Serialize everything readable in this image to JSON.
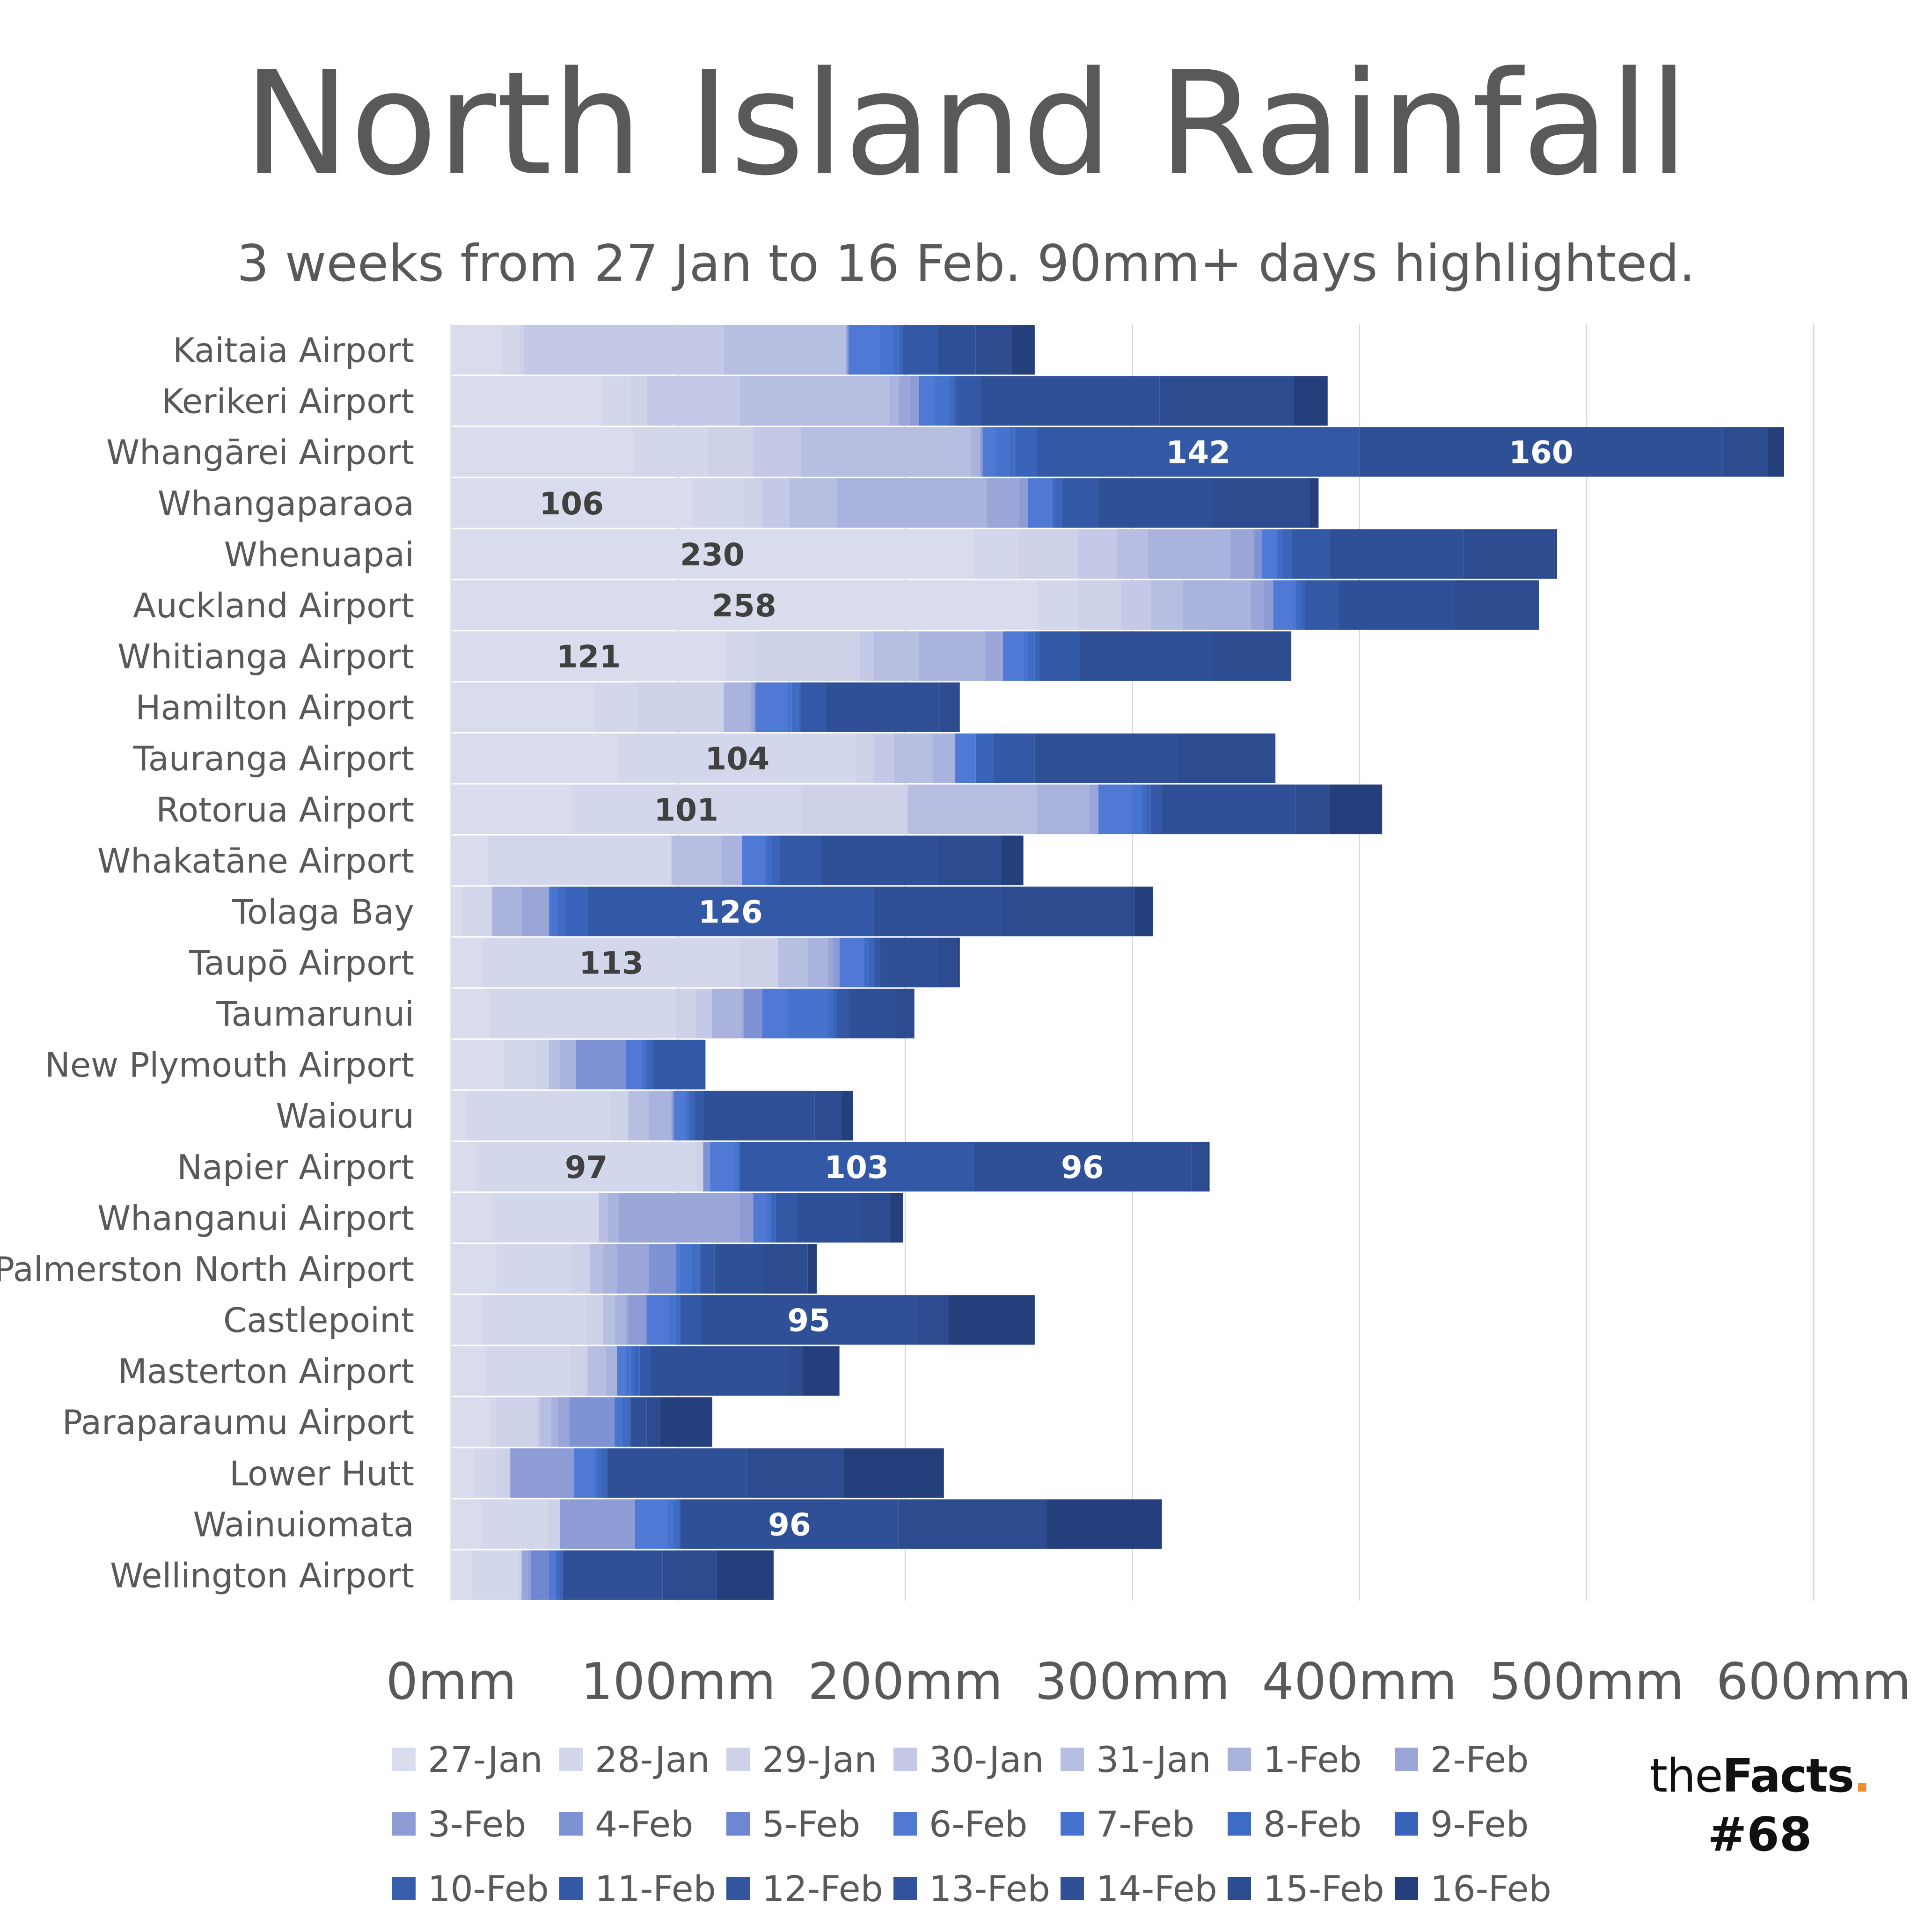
{
  "chart_data": {
    "type": "bar",
    "orientation": "horizontal",
    "stacked": true,
    "title": "North Island Rainfall",
    "subtitle": "3 weeks from 27 Jan to 16 Feb. 90mm+ days highlighted.",
    "xlim": [
      0,
      600
    ],
    "x_ticks": [
      "0mm",
      "100mm",
      "200mm",
      "300mm",
      "400mm",
      "500mm",
      "600mm"
    ],
    "grid": "vertical",
    "legend_position": "bottom",
    "highlight_threshold": 90,
    "categories": [
      "Kaitaia Airport",
      "Kerikeri Airport",
      "Whangārei Airport",
      "Whangaparaoa",
      "Whenuapai",
      "Auckland Airport",
      "Whitianga Airport",
      "Hamilton Airport",
      "Tauranga Airport",
      "Rotorua Airport",
      "Whakatāne Airport",
      "Tolaga Bay",
      "Taupō Airport",
      "Taumarunui",
      "New Plymouth Airport",
      "Waiouru",
      "Napier Airport",
      "Whanganui Airport",
      "Palmerston North Airport",
      "Castlepoint",
      "Masterton Airport",
      "Paraparaumu Airport",
      "Lower Hutt",
      "Wainuiomata",
      "Wellington Airport"
    ],
    "series": [
      {
        "name": "27-Jan",
        "color": "#d9dcec",
        "values": [
          22,
          66,
          80,
          106,
          230,
          258,
          121,
          63,
          74,
          53,
          16,
          5,
          14,
          17,
          23,
          7,
          11,
          18,
          20,
          13,
          15,
          17,
          10,
          13,
          9
        ]
      },
      {
        "name": "28-Jan",
        "color": "#d3d7eb",
        "values": [
          8,
          13,
          33,
          23,
          20,
          18,
          13,
          19,
          104,
          101,
          81,
          12,
          113,
          82,
          14,
          63,
          97,
          47,
          33,
          46,
          37,
          3,
          10,
          29,
          20
        ]
      },
      {
        "name": "29-Jan",
        "color": "#cdd2e9",
        "values": [
          2,
          7,
          20,
          8,
          26,
          19,
          46,
          38,
          8,
          47,
          0,
          1,
          17,
          9,
          6,
          8,
          3,
          0,
          8,
          8,
          8,
          18,
          6,
          6,
          2
        ]
      },
      {
        "name": "30-Jan",
        "color": "#c3c9e6",
        "values": [
          88,
          41,
          21,
          12,
          17,
          13,
          6,
          0,
          9,
          0,
          0,
          0,
          0,
          7,
          0,
          0,
          0,
          0,
          0,
          0,
          0,
          1,
          0,
          0,
          0
        ]
      },
      {
        "name": "31-Jan",
        "color": "#b6bee2",
        "values": [
          54,
          66,
          75,
          21,
          14,
          14,
          20,
          0,
          17,
          57,
          22,
          0,
          13,
          0,
          5,
          9,
          0,
          4,
          6,
          5,
          8,
          5,
          0,
          0,
          0
        ]
      },
      {
        "name": "1-Feb",
        "color": "#aab3de",
        "values": [
          0,
          4,
          4,
          66,
          36,
          30,
          29,
          12,
          10,
          23,
          9,
          13,
          9,
          13,
          7,
          10,
          0,
          5,
          6,
          5,
          5,
          3,
          0,
          0,
          0
        ]
      },
      {
        "name": "2-Feb",
        "color": "#9aa6d8",
        "values": [
          0,
          5,
          0,
          14,
          10,
          6,
          8,
          1,
          0,
          4,
          0,
          12,
          2,
          1,
          0,
          0,
          0,
          53,
          14,
          1,
          0,
          5,
          0,
          0,
          3
        ]
      },
      {
        "name": "3-Feb",
        "color": "#8d9cd5",
        "values": [
          1,
          4,
          1,
          4,
          1,
          4,
          0,
          1,
          0,
          0,
          0,
          0,
          3,
          0,
          0,
          1,
          0,
          6,
          0,
          8,
          0,
          0,
          28,
          33,
          1
        ]
      },
      {
        "name": "4-Feb",
        "color": "#7f92d3",
        "values": [
          0,
          0,
          0,
          0,
          3,
          0,
          0,
          0,
          0,
          0,
          0,
          0,
          0,
          8,
          22,
          0,
          3,
          0,
          12,
          0,
          0,
          20,
          0,
          0,
          0
        ]
      },
      {
        "name": "5-Feb",
        "color": "#6f86d1",
        "values": [
          0,
          0,
          0,
          0,
          0,
          0,
          0,
          0,
          0,
          0,
          0,
          0,
          0,
          0,
          0,
          0,
          0,
          0,
          0,
          0,
          0,
          0,
          0,
          0,
          8
        ]
      },
      {
        "name": "6-Feb",
        "color": "#4f79d4",
        "values": [
          14,
          7,
          6,
          10,
          6,
          9,
          9,
          14,
          9,
          15,
          10,
          1,
          11,
          11,
          7,
          5,
          11,
          6,
          2,
          10,
          4,
          0,
          9,
          14,
          3
        ]
      },
      {
        "name": "7-Feb",
        "color": "#4573cd",
        "values": [
          6,
          6,
          6,
          1,
          1,
          1,
          2,
          2,
          0,
          4,
          1,
          3,
          0,
          18,
          1,
          1,
          1,
          1,
          5,
          3,
          2,
          3,
          1,
          3,
          0
        ]
      },
      {
        "name": "8-Feb",
        "color": "#3e6bc4",
        "values": [
          2,
          2,
          2,
          1,
          2,
          2,
          3,
          3,
          0,
          2,
          2,
          3,
          2,
          2,
          1,
          1,
          1,
          1,
          3,
          2,
          2,
          3,
          2,
          2,
          2
        ]
      },
      {
        "name": "9-Feb",
        "color": "#3a64b9",
        "values": [
          2,
          1,
          10,
          3,
          4,
          2,
          2,
          1,
          8,
          2,
          4,
          10,
          2,
          2,
          3,
          2,
          0,
          2,
          1,
          0,
          2,
          1,
          2,
          1,
          1
        ]
      },
      {
        "name": "10-Feb",
        "color": "#365ead",
        "values": [
          0,
          0,
          0,
          0,
          0,
          0,
          0,
          0,
          0,
          0,
          0,
          0,
          0,
          0,
          0,
          0,
          0,
          0,
          0,
          0,
          0,
          0,
          0,
          0,
          0
        ]
      },
      {
        "name": "11-Feb",
        "color": "#3358a5",
        "values": [
          15,
          11,
          142,
          16,
          17,
          15,
          18,
          11,
          18,
          5,
          18,
          126,
          3,
          5,
          23,
          4,
          103,
          9,
          6,
          9,
          5,
          0,
          1,
          0,
          0
        ]
      },
      {
        "name": "12-Feb",
        "color": "#31559f",
        "values": [
          0,
          0,
          0,
          0,
          0,
          0,
          0,
          0,
          0,
          0,
          0,
          0,
          0,
          0,
          0,
          0,
          0,
          0,
          0,
          0,
          0,
          0,
          0,
          0,
          0
        ]
      },
      {
        "name": "13-Feb",
        "color": "#30539b",
        "values": [
          0,
          0,
          0,
          0,
          0,
          0,
          0,
          0,
          0,
          0,
          0,
          0,
          0,
          0,
          0,
          0,
          0,
          0,
          0,
          0,
          0,
          0,
          0,
          0,
          0
        ]
      },
      {
        "name": "14-Feb",
        "color": "#2f5096",
        "values": [
          17,
          79,
          160,
          50,
          59,
          51,
          58,
          50,
          63,
          59,
          51,
          56,
          25,
          20,
          0,
          49,
          96,
          28,
          21,
          95,
          60,
          7,
          61,
          96,
          44
        ]
      },
      {
        "name": "15-Feb",
        "color": "#2d4c8f",
        "values": [
          16,
          59,
          20,
          43,
          40,
          37,
          35,
          9,
          43,
          15,
          28,
          59,
          9,
          9,
          0,
          12,
          7,
          13,
          20,
          14,
          7,
          6,
          43,
          65,
          24
        ]
      },
      {
        "name": "16-Feb",
        "color": "#243f7b",
        "values": [
          10,
          15,
          7,
          4,
          1,
          0,
          0,
          0,
          0,
          23,
          10,
          8,
          1,
          0,
          0,
          5,
          1,
          6,
          4,
          38,
          16,
          23,
          44,
          51,
          25
        ]
      }
    ]
  },
  "branding": {
    "name_light": "the",
    "name_bold": "Facts",
    "name_dot": ".",
    "issue": "#68"
  }
}
